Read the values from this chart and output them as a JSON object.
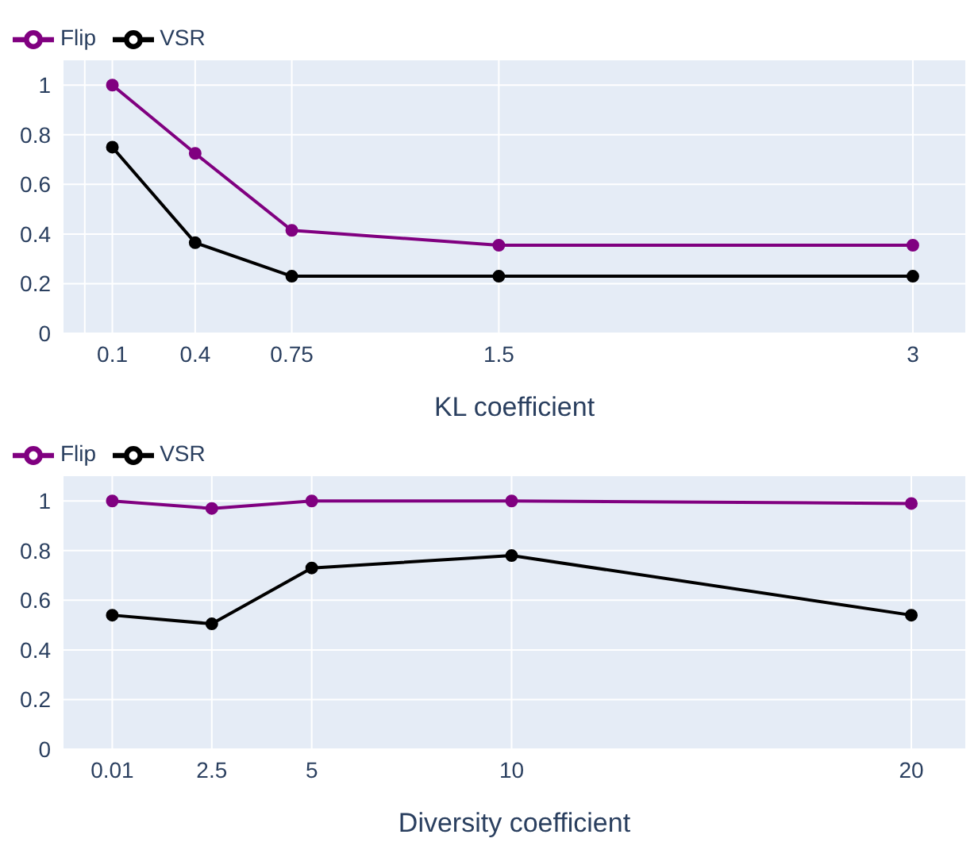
{
  "chart_data": [
    {
      "type": "line",
      "xlabel": "KL coefficient",
      "x": [
        0.1,
        0.4,
        0.75,
        1.5,
        3
      ],
      "xlim": [
        -0.077,
        3.19
      ],
      "xticks": [
        {
          "value": 0,
          "label": null
        },
        0.1,
        0.4,
        0.75,
        1.5,
        3
      ],
      "ylim": [
        0,
        1.1
      ],
      "yticks": [
        0,
        0.2,
        0.4,
        0.6,
        0.8,
        1
      ],
      "grid": true,
      "legend": "top left",
      "marker": "circle",
      "line_style": "solid",
      "series": [
        {
          "name": "VSR",
          "color": "#000000",
          "values": [
            0.75,
            0.365,
            0.23,
            0.23,
            0.23
          ]
        },
        {
          "name": "Flip",
          "color": "#800080",
          "values": [
            1,
            0.725,
            0.415,
            0.355,
            0.355
          ]
        }
      ]
    },
    {
      "type": "line",
      "xlabel": "Diversity coefficient",
      "x": [
        0.01,
        2.5,
        5,
        10,
        20
      ],
      "xlim": [
        -1.21,
        21.35
      ],
      "xticks": [
        0.01,
        2.5,
        5,
        10,
        20
      ],
      "ylim": [
        0,
        1.1
      ],
      "yticks": [
        0,
        0.2,
        0.4,
        0.6,
        0.8,
        1
      ],
      "grid": true,
      "legend": "top left",
      "marker": "circle",
      "line_style": "solid",
      "series": [
        {
          "name": "VSR",
          "color": "#000000",
          "values": [
            0.54,
            0.505,
            0.73,
            0.78,
            0.54
          ]
        },
        {
          "name": "Flip",
          "color": "#800080",
          "values": [
            1,
            0.97,
            1,
            1,
            0.99
          ]
        }
      ]
    }
  ]
}
